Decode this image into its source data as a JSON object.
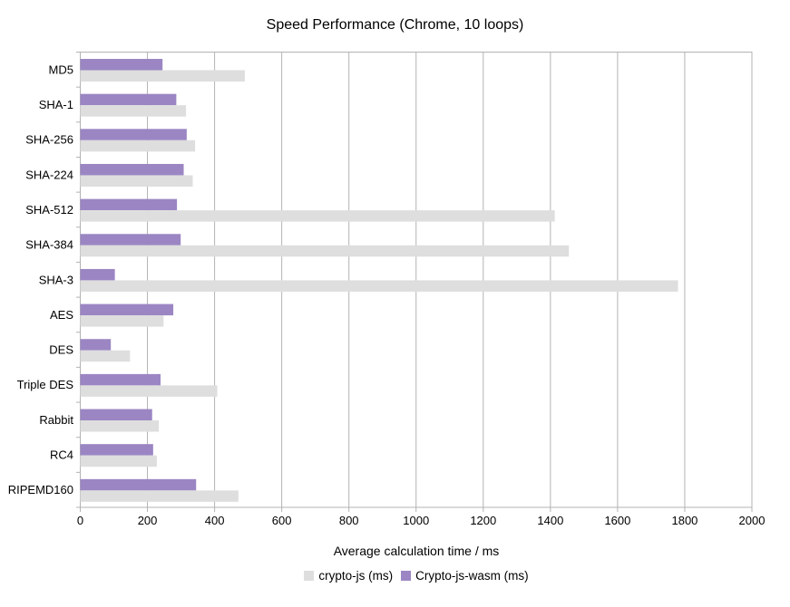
{
  "chart_data": {
    "type": "bar",
    "orientation": "horizontal",
    "title": "Speed Performance (Chrome, 10 loops)",
    "xlabel": "Average calculation time / ms",
    "xlim": [
      0,
      2000
    ],
    "xticks": [
      0,
      200,
      400,
      600,
      800,
      1000,
      1200,
      1400,
      1600,
      1800,
      2000
    ],
    "grid": true,
    "legend_position": "bottom",
    "categories": [
      "MD5",
      "SHA-1",
      "SHA-256",
      "SHA-224",
      "SHA-512",
      "SHA-384",
      "SHA-3",
      "AES",
      "DES",
      "Triple DES",
      "Rabbit",
      "RC4",
      "RIPEMD160"
    ],
    "series": [
      {
        "name": "crypto-js (ms)",
        "color": "#dedede",
        "values": [
          490,
          315,
          342,
          335,
          1413,
          1455,
          1780,
          248,
          148,
          408,
          234,
          228,
          471
        ]
      },
      {
        "name": "Crypto-js-wasm (ms)",
        "color": "#9b86c3",
        "values": [
          245,
          286,
          317,
          308,
          288,
          299,
          103,
          277,
          91,
          239,
          214,
          217,
          345
        ]
      }
    ],
    "colors": {
      "grid": "#b3b3b3",
      "text": "#000000",
      "background": "#ffffff"
    }
  }
}
